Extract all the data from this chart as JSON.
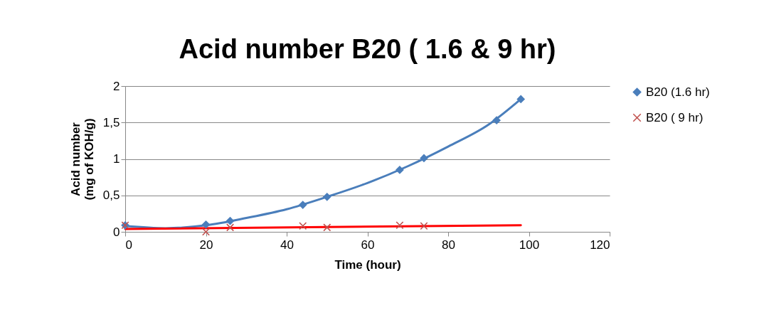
{
  "chart_data": {
    "type": "scatter",
    "title": "Acid number B20 ( 1.6 & 9 hr)",
    "xlabel": "Time (hour)",
    "ylabel": "Acid number\n(mg  of KOH/g)",
    "xlim": [
      0,
      120
    ],
    "xticks": [
      0,
      20,
      40,
      60,
      80,
      100,
      120
    ],
    "ylim": [
      0,
      2
    ],
    "yticks": [
      0,
      {
        "value": 0.5,
        "label": "0,5"
      },
      1,
      {
        "value": 1.5,
        "label": "1,5"
      },
      2
    ],
    "grid": "y",
    "legend": "right",
    "series": [
      {
        "name": "B20 (1.6 hr)",
        "marker": "diamond",
        "color": "#4a7ebb",
        "x": [
          0,
          20,
          26,
          44,
          50,
          68,
          74,
          92,
          98
        ],
        "values": [
          0.09,
          0.1,
          0.15,
          0.37,
          0.48,
          0.85,
          1.01,
          1.53,
          1.82
        ]
      },
      {
        "name": "B20 ( 9 hr)",
        "marker": "cross",
        "color": "#c0504d",
        "x": [
          0,
          20,
          26,
          44,
          50,
          68,
          74
        ],
        "values": [
          0.09,
          0.0,
          0.06,
          0.08,
          0.06,
          0.09,
          0.08
        ]
      },
      {
        "type": "line",
        "marker": "none",
        "line_style": "solid",
        "color": "#4a7ebb",
        "x": [
          0,
          10,
          20,
          30,
          40,
          50,
          60,
          70,
          80,
          90,
          98
        ],
        "values": [
          0.08,
          0.05,
          0.09,
          0.19,
          0.31,
          0.48,
          0.67,
          0.9,
          1.17,
          1.47,
          1.82
        ]
      },
      {
        "type": "line",
        "marker": "none",
        "line_style": "solid",
        "color": "#ff0000",
        "x": [
          0,
          98
        ],
        "values": [
          0.04,
          0.09
        ]
      }
    ]
  }
}
